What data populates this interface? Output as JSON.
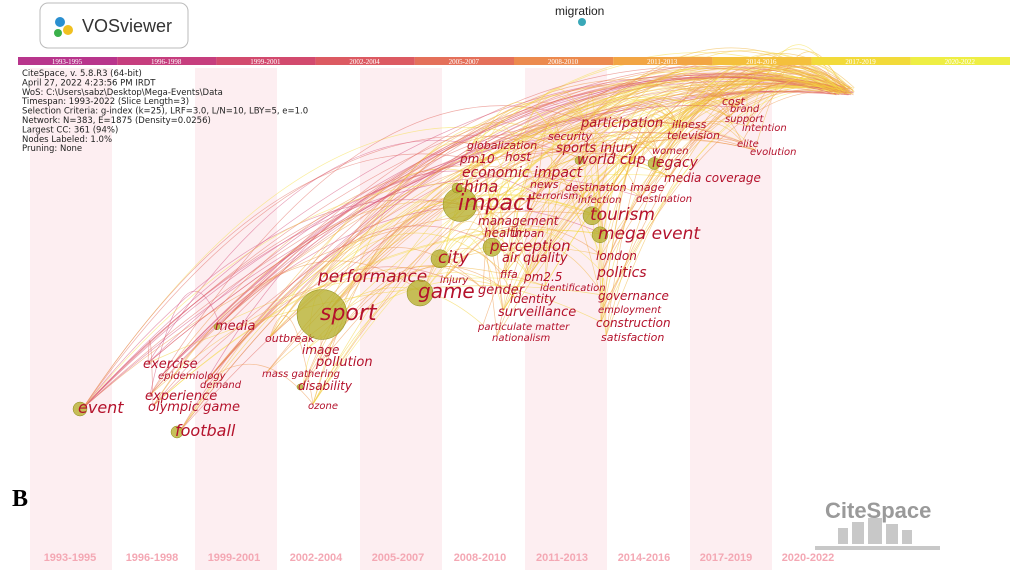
{
  "logo": "VOSviewer",
  "top_label": "migration",
  "periods": [
    "1993-1995",
    "1996-1998",
    "1999-2001",
    "2002-2004",
    "2005-2007",
    "2008-2010",
    "2011-2013",
    "2014-2016",
    "2017-2019",
    "2020-2022"
  ],
  "info": [
    "CiteSpace, v. 5.8.R3 (64-bit)",
    "April 27, 2022 4:23:56 PM IRDT",
    "WoS: C:\\Users\\sabz\\Desktop\\Mega-Events\\Data",
    "Timespan: 1993-2022 (Slice Length=3)",
    "Selection Criteria: g-index (k=25), LRF=3.0, L/N=10, LBY=5, e=1.0",
    "Network: N=383, E=1875 (Density=0.0256)",
    "Largest CC: 361 (94%)",
    "Nodes Labeled: 1.0%",
    "Pruning: None"
  ],
  "keywords": [
    "event",
    "experience",
    "olympic game",
    "football",
    "exercise",
    "epidemiology",
    "demand",
    "media",
    "outbreak",
    "image",
    "pollution",
    "mass gathering",
    "disability",
    "ozone",
    "sport",
    "performance",
    "game",
    "city",
    "injury",
    "impact",
    "china",
    "management",
    "health",
    "perception",
    "urban",
    "economic impact",
    "pm10",
    "host",
    "globalization",
    "news",
    "terrorism",
    "air quality",
    "fifa",
    "pm2.5",
    "gender",
    "identity",
    "surveillance",
    "particulate matter",
    "nationalism",
    "identification",
    "security",
    "sports injury",
    "world cup",
    "participation",
    "destination image",
    "infection",
    "tourism",
    "mega event",
    "london",
    "politics",
    "governance",
    "employment",
    "construction",
    "satisfaction",
    "legacy",
    "women",
    "illness",
    "television",
    "media coverage",
    "destination",
    "cost",
    "brand",
    "support",
    "intention",
    "elite",
    "evolution"
  ],
  "panel": "B",
  "watermark": "CiteSpace"
}
